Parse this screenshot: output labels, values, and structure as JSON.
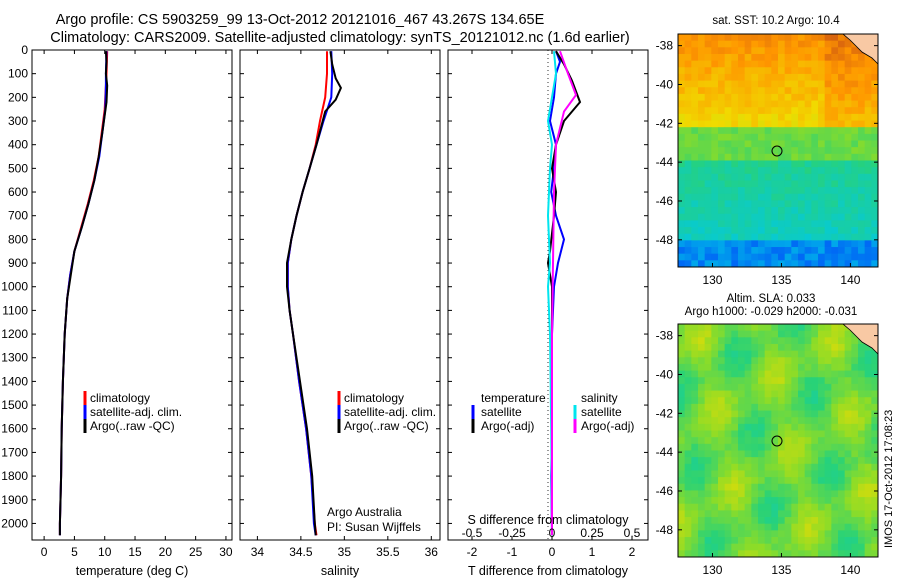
{
  "header": {
    "line1": "Argo profile: CS 5903259_99 13-Oct-2012 20121016_467 43.267S 134.65E",
    "line2": "Climatology: CARS2009. Satellite-adjusted climatology: synTS_20121012.nc (1.6d earlier)"
  },
  "colors": {
    "climatology": "#ff0000",
    "satellite": "#0000ff",
    "argo": "#000000",
    "sat_salinity": "#00e5ee",
    "argo_salinity": "#ff00ff"
  },
  "chart_data": [
    {
      "type": "line",
      "panel": "temperature",
      "xlabel": "temperature (deg C)",
      "ylabel": "",
      "xlim": [
        -2,
        31
      ],
      "ylim": [
        2070,
        0
      ],
      "xticks": [
        "0",
        "5",
        "10",
        "15",
        "20",
        "25",
        "30"
      ],
      "yticks": [
        "0",
        "100",
        "200",
        "300",
        "400",
        "500",
        "600",
        "700",
        "800",
        "900",
        "1000",
        "1100",
        "1200",
        "1300",
        "1400",
        "1500",
        "1600",
        "1700",
        "1800",
        "1900",
        "2000"
      ],
      "legend": [
        "climatology",
        "satellite-adj. clim.",
        "Argo(..raw -QC)"
      ],
      "series": [
        {
          "name": "climatology",
          "color": "#ff0000",
          "x": [
            10.4,
            10.3,
            10.2,
            10.0,
            9.5,
            9.0,
            8.2,
            7.2,
            6.1,
            5.0,
            4.3,
            3.8,
            3.4,
            3.1,
            2.9,
            2.8,
            2.6,
            2.6
          ],
          "y": [
            5,
            100,
            150,
            250,
            350,
            450,
            550,
            650,
            750,
            850,
            950,
            1050,
            1200,
            1400,
            1600,
            1800,
            2000,
            2050
          ]
        },
        {
          "name": "satellite-adj. clim.",
          "color": "#0000ff",
          "x": [
            10.3,
            10.2,
            10.2,
            10.1,
            9.6,
            9.1,
            8.3,
            7.3,
            6.2,
            5.0,
            4.3,
            3.8,
            3.4,
            3.1,
            2.9,
            2.8,
            2.6,
            2.6
          ],
          "y": [
            5,
            100,
            150,
            250,
            350,
            450,
            550,
            650,
            750,
            850,
            950,
            1050,
            1200,
            1400,
            1600,
            1800,
            2000,
            2050
          ]
        },
        {
          "name": "Argo(..raw -QC)",
          "color": "#000000",
          "x": [
            10.2,
            10.3,
            10.2,
            10.4,
            10.3,
            9.6,
            9.0,
            8.3,
            7.3,
            6.2,
            5.0,
            4.4,
            3.8,
            3.4,
            3.1,
            2.9,
            2.8,
            2.6,
            2.6
          ],
          "y": [
            5,
            50,
            100,
            150,
            220,
            350,
            450,
            550,
            650,
            750,
            850,
            950,
            1050,
            1200,
            1400,
            1600,
            1800,
            2000,
            2050
          ]
        }
      ]
    },
    {
      "type": "line",
      "panel": "salinity",
      "xlabel": "salinity",
      "xlim": [
        33.8,
        36.1
      ],
      "ylim": [
        2070,
        0
      ],
      "xticks": [
        "34",
        "34.5",
        "35",
        "35.5",
        "36"
      ],
      "legend": [
        "climatology",
        "satellite-adj. clim.",
        "Argo(..raw -QC)"
      ],
      "annotation": [
        "Argo Australia",
        "PI: Susan Wijffels"
      ],
      "series": [
        {
          "name": "climatology",
          "color": "#ff0000",
          "x": [
            34.8,
            34.8,
            34.78,
            34.72,
            34.67,
            34.6,
            34.52,
            34.45,
            34.39,
            34.35,
            34.35,
            34.37,
            34.41,
            34.48,
            34.56,
            34.62,
            34.66,
            34.68
          ],
          "y": [
            5,
            100,
            200,
            300,
            400,
            500,
            600,
            700,
            800,
            900,
            1000,
            1100,
            1200,
            1400,
            1600,
            1800,
            2000,
            2050
          ]
        },
        {
          "name": "satellite-adj. clim.",
          "color": "#0000ff",
          "x": [
            34.85,
            34.86,
            34.85,
            34.76,
            34.68,
            34.6,
            34.52,
            34.45,
            34.39,
            34.35,
            34.35,
            34.37,
            34.41,
            34.48,
            34.56,
            34.62,
            34.65,
            34.67
          ],
          "y": [
            5,
            100,
            200,
            300,
            400,
            500,
            600,
            700,
            800,
            900,
            1000,
            1100,
            1200,
            1400,
            1600,
            1800,
            2000,
            2050
          ]
        },
        {
          "name": "Argo(..raw -QC)",
          "color": "#000000",
          "x": [
            34.84,
            34.86,
            34.9,
            34.96,
            34.9,
            34.78,
            34.68,
            34.6,
            34.52,
            34.45,
            34.39,
            34.34,
            34.34,
            34.37,
            34.41,
            34.49,
            34.57,
            34.63,
            34.66,
            34.67
          ],
          "y": [
            5,
            60,
            120,
            160,
            210,
            260,
            400,
            500,
            600,
            700,
            800,
            900,
            1000,
            1100,
            1200,
            1400,
            1600,
            1800,
            2000,
            2050
          ]
        }
      ]
    },
    {
      "type": "line",
      "panel": "differences",
      "xlabel": "T difference from climatology",
      "xlabel2": "S difference from climatology",
      "xlim": [
        -2.6,
        2.4
      ],
      "ylim": [
        2070,
        0
      ],
      "xticks": [
        "-2",
        "-1",
        "0",
        "1",
        "2"
      ],
      "xticks2": [
        "-0.5",
        "-0.25",
        "0",
        "0.25",
        "0.5"
      ],
      "legend_temperature_title": "temperature",
      "legend_salinity_title": "salinity",
      "legend": [
        "satellite",
        "Argo(-adj)",
        "satellite",
        "Argo(-adj)"
      ],
      "series": [
        {
          "name": "satellite",
          "color": "#0000ff",
          "x": [
            0.1,
            0.2,
            0.1,
            0.05,
            -0.05,
            0.1,
            0.05,
            -0.02,
            0.1,
            0.3,
            0.15,
            0.05,
            0.0,
            0.0,
            0.0,
            -0.02,
            0.0
          ],
          "y": [
            5,
            50,
            100,
            200,
            300,
            400,
            500,
            600,
            700,
            800,
            900,
            1000,
            1200,
            1400,
            1600,
            1800,
            2050
          ]
        },
        {
          "name": "Argo(-adj)",
          "color": "#000000",
          "x": [
            0.1,
            0.3,
            0.5,
            0.7,
            0.3,
            0.1,
            0.0,
            0.1,
            0.05,
            -0.05,
            -0.1,
            0.0,
            0.0,
            0.0,
            0.0
          ],
          "y": [
            5,
            60,
            130,
            220,
            300,
            400,
            500,
            600,
            700,
            850,
            900,
            1000,
            1200,
            1600,
            2050
          ]
        },
        {
          "name": "satellite",
          "color": "#00e5ee",
          "x": [
            0.05,
            0.1,
            0.0,
            -0.1,
            0.0,
            -0.05,
            -0.1,
            -0.05,
            -0.1,
            -0.05,
            -0.02,
            0.0
          ],
          "y": [
            5,
            100,
            200,
            300,
            400,
            500,
            700,
            900,
            1000,
            1200,
            1600,
            2050
          ]
        },
        {
          "name": "Argo(-adj)",
          "color": "#ff00ff",
          "x": [
            0.2,
            0.4,
            0.6,
            0.3,
            0.1,
            0.05,
            0.0,
            0.0
          ],
          "y": [
            5,
            100,
            190,
            260,
            400,
            600,
            1200,
            2050
          ]
        }
      ]
    },
    {
      "type": "heatmap",
      "panel": "sst_map",
      "title": "sat. SST: 10.2 Argo: 10.4",
      "xticks": [
        "130",
        "135",
        "140"
      ],
      "yticks": [
        "-38",
        "-40",
        "-42",
        "-44",
        "-46",
        "-48"
      ],
      "xlim": [
        127.5,
        142
      ],
      "ylim": [
        -49.4,
        -37.4
      ],
      "marker": {
        "lon": 134.65,
        "lat": -43.27
      }
    },
    {
      "type": "heatmap",
      "panel": "sla_map",
      "title": "Altim. SLA: 0.033",
      "subtitle": "Argo h1000: -0.029 h2000: -0.031",
      "xticks": [
        "130",
        "135",
        "140"
      ],
      "yticks": [
        "-38",
        "-40",
        "-42",
        "-44",
        "-46",
        "-48"
      ],
      "xlim": [
        127.5,
        142
      ],
      "ylim": [
        -49.4,
        -37.4
      ],
      "marker": {
        "lon": 134.65,
        "lat": -43.27
      }
    }
  ],
  "credit": "IMOS 17-Oct-2012 17:08:23"
}
